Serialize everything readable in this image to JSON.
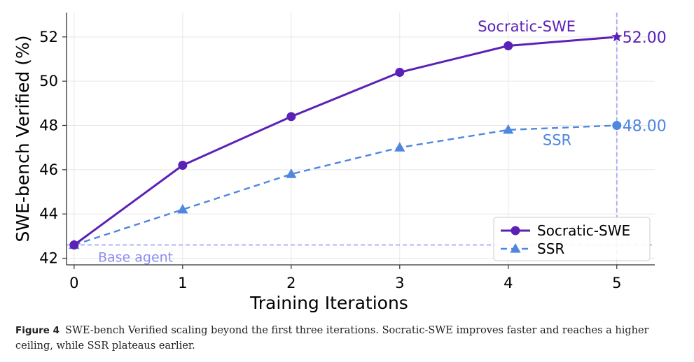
{
  "chart_data": {
    "type": "line",
    "xlabel": "Training Iterations",
    "ylabel": "SWE-bench Verified (%)",
    "x": [
      0,
      1,
      2,
      3,
      4,
      5
    ],
    "xlim": [
      -0.07,
      5.35
    ],
    "ylim": [
      41.7,
      53.1
    ],
    "xticks": [
      "0",
      "1",
      "2",
      "3",
      "4",
      "5"
    ],
    "yticks": [
      "42",
      "44",
      "46",
      "48",
      "50",
      "52"
    ],
    "grid": true,
    "legend_position": "lower-right",
    "series": [
      {
        "name": "Socratic-SWE",
        "values": [
          42.6,
          46.2,
          48.4,
          50.4,
          51.6,
          52.0
        ],
        "color": "#5b21b6",
        "style": "solid",
        "marker": "circle",
        "final_marker": "star"
      },
      {
        "name": "SSR",
        "values": [
          42.6,
          44.2,
          45.8,
          47.0,
          47.8,
          48.0
        ],
        "color": "#4f86e0",
        "style": "dashed",
        "marker": "triangle",
        "final_marker": "circle"
      }
    ],
    "annotations": {
      "baseline_value": 42.6,
      "baseline_label": "Base agent",
      "baseline_color": "#a5a8f2",
      "vline_x": 5,
      "top_label": "Socratic-SWE",
      "top_value_label": "52.00",
      "bottom_label": "SSR",
      "bottom_value_label": "48.00"
    }
  },
  "caption": {
    "figure_label": "Figure 4",
    "text": "SWE-bench Verified scaling beyond the first three iterations. Socratic-SWE improves faster and reaches a higher ceiling, while SSR plateaus earlier."
  }
}
